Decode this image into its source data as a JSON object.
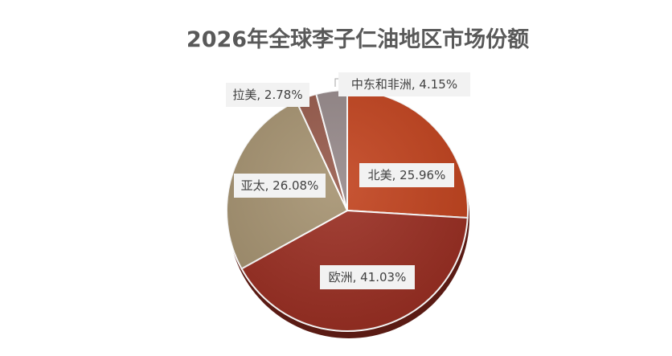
{
  "chart_data": {
    "type": "pie",
    "title": "2026年全球李子仁油地区市场份额",
    "slices": [
      {
        "label": "北美",
        "value": 25.96,
        "display": "25.96%",
        "color": "#c2431e"
      },
      {
        "label": "欧洲",
        "value": 41.03,
        "display": "41.03%",
        "color": "#9a2e22"
      },
      {
        "label": "亚太",
        "value": 26.08,
        "display": "26.08%",
        "color": "#a59270"
      },
      {
        "label": "拉美",
        "value": 2.78,
        "display": "2.78%",
        "color": "#96594a"
      },
      {
        "label": "中东和非洲",
        "value": 4.15,
        "display": "4.15%",
        "color": "#958889"
      }
    ],
    "legend": "none"
  }
}
